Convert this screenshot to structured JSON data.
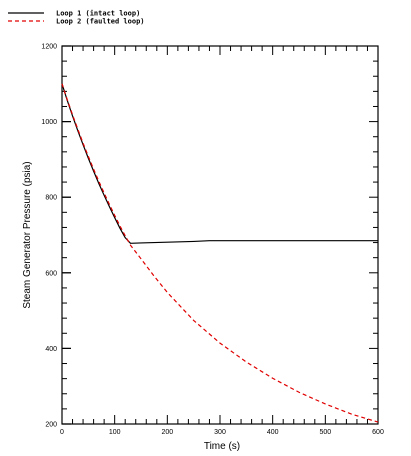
{
  "chart_data": {
    "type": "line",
    "xlabel": "Time  (s)",
    "ylabel": "Steam Generator Pressure  (psia)",
    "xlim": [
      0,
      600
    ],
    "ylim": [
      200,
      1200
    ],
    "xticks": [
      0,
      100,
      200,
      300,
      400,
      500,
      600
    ],
    "yticks": [
      200,
      400,
      600,
      800,
      1000,
      1200
    ],
    "x_minor_step": 20,
    "y_minor_step": 40,
    "grid": false,
    "legend_position": "top-left",
    "series": [
      {
        "name": "Loop 1 (intact loop)",
        "color": "#000000",
        "style": "solid",
        "x": [
          0,
          10,
          20,
          30,
          40,
          50,
          60,
          70,
          80,
          90,
          100,
          110,
          120,
          130,
          150,
          200,
          250,
          280,
          300,
          400,
          500,
          600
        ],
        "y": [
          1100,
          1056,
          1015,
          976,
          939,
          903,
          869,
          836,
          805,
          775,
          746,
          718,
          693,
          678,
          679,
          681,
          683,
          685,
          685,
          685,
          685,
          685
        ]
      },
      {
        "name": "Loop 2 (faulted loop)",
        "color": "#e00000",
        "style": "dashed",
        "x": [
          0,
          10,
          20,
          30,
          40,
          50,
          60,
          70,
          80,
          90,
          100,
          110,
          120,
          130,
          150,
          175,
          200,
          250,
          300,
          350,
          400,
          450,
          500,
          550,
          600
        ],
        "y": [
          1100,
          1058,
          1018,
          980,
          943,
          908,
          874,
          842,
          811,
          781,
          752,
          724,
          698,
          673,
          637,
          591,
          548,
          474,
          414,
          364,
          321,
          284,
          253,
          226,
          205
        ]
      }
    ]
  }
}
